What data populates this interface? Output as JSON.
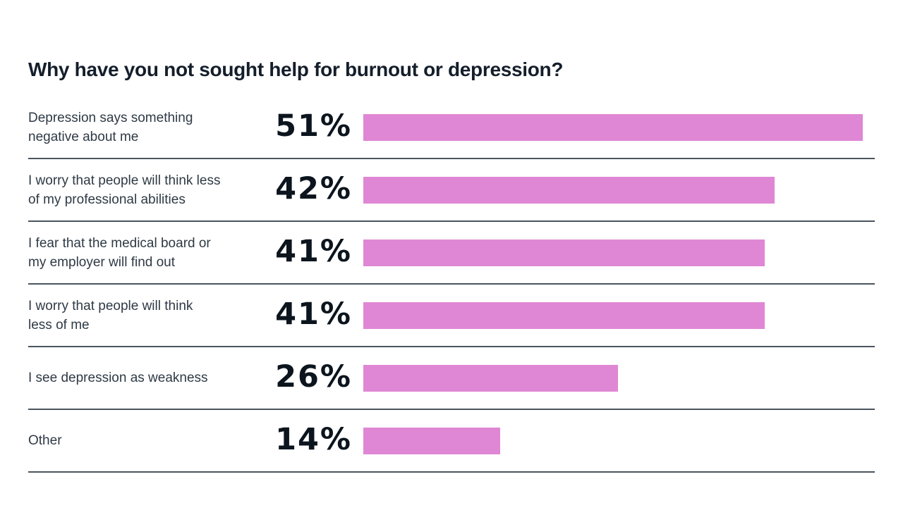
{
  "chart": {
    "title": "Why have you not sought help for burnout or depression?",
    "rows": [
      {
        "label": "Depression says something\nnegative about me",
        "value_label": "51%"
      },
      {
        "label": "I worry that people will think less\nof my professional abilities",
        "value_label": "42%"
      },
      {
        "label": "I fear that the medical board or\nmy employer will find out",
        "value_label": "41%"
      },
      {
        "label": "I worry that people will think\nless of me",
        "value_label": "41%"
      },
      {
        "label": "I see depression as weakness",
        "value_label": "26%"
      },
      {
        "label": "Other",
        "value_label": "14%"
      }
    ],
    "colors": {
      "bar": "#DF87D4",
      "divider": "#4A545E",
      "title_text": "#141E2B",
      "label_text": "#2F3A45",
      "value_text": "#0C151E",
      "background": "#FFFFFF"
    }
  },
  "chart_data": {
    "type": "bar",
    "orientation": "horizontal",
    "title": "Why have you not sought help for burnout or depression?",
    "categories": [
      "Depression says something negative about me",
      "I worry that people will think less of my professional abilities",
      "I fear that the medical board or my employer will find out",
      "I worry that people will think less of me",
      "I see depression as weakness",
      "Other"
    ],
    "values": [
      51,
      42,
      41,
      41,
      26,
      14
    ],
    "value_labels": [
      "51%",
      "42%",
      "41%",
      "41%",
      "26%",
      "14%"
    ],
    "unit": "%",
    "xlabel": "",
    "ylabel": "",
    "xlim": [
      0,
      51
    ],
    "grid": false,
    "legend": false,
    "bar_color": "#DF87D4"
  }
}
